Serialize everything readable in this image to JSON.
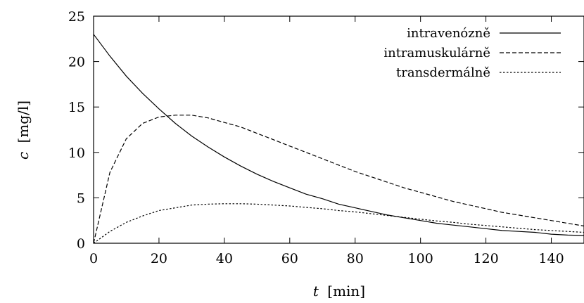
{
  "chart_data": {
    "type": "line",
    "title": "",
    "xlabel": {
      "var": "t",
      "unit": "[min]"
    },
    "ylabel": {
      "var": "c",
      "unit": "[mg/l]"
    },
    "xlim": [
      0,
      150
    ],
    "ylim": [
      0,
      25
    ],
    "xticks": [
      0,
      20,
      40,
      60,
      80,
      100,
      120,
      140
    ],
    "yticks": [
      0,
      5,
      10,
      15,
      20,
      25
    ],
    "grid": false,
    "legend_position": "top-right",
    "x": [
      0,
      5,
      10,
      15,
      20,
      25,
      30,
      35,
      40,
      45,
      50,
      55,
      60,
      65,
      70,
      75,
      80,
      85,
      90,
      95,
      100,
      105,
      110,
      115,
      120,
      125,
      130,
      135,
      140,
      145,
      150
    ],
    "series": [
      {
        "name": "intravenózně",
        "dash": "solid",
        "values": [
          23.0,
          20.6,
          18.4,
          16.5,
          14.8,
          13.2,
          11.8,
          10.6,
          9.5,
          8.5,
          7.6,
          6.8,
          6.1,
          5.4,
          4.9,
          4.3,
          3.9,
          3.5,
          3.1,
          2.8,
          2.5,
          2.2,
          2.0,
          1.8,
          1.6,
          1.4,
          1.3,
          1.2,
          1.0,
          0.9,
          0.85
        ]
      },
      {
        "name": "intramuskulárně",
        "dash": "dashed",
        "values": [
          0.0,
          7.8,
          11.5,
          13.2,
          13.9,
          14.1,
          14.1,
          13.8,
          13.3,
          12.8,
          12.1,
          11.4,
          10.7,
          10.0,
          9.3,
          8.6,
          7.9,
          7.3,
          6.7,
          6.1,
          5.6,
          5.1,
          4.6,
          4.2,
          3.8,
          3.4,
          3.1,
          2.8,
          2.5,
          2.2,
          1.9
        ]
      },
      {
        "name": "transdermálně",
        "dash": "dotted",
        "values": [
          0.0,
          1.3,
          2.3,
          3.0,
          3.6,
          3.9,
          4.2,
          4.3,
          4.35,
          4.35,
          4.3,
          4.2,
          4.1,
          3.95,
          3.8,
          3.6,
          3.45,
          3.25,
          3.05,
          2.85,
          2.65,
          2.45,
          2.3,
          2.1,
          1.95,
          1.8,
          1.65,
          1.5,
          1.4,
          1.3,
          1.2
        ]
      }
    ]
  }
}
